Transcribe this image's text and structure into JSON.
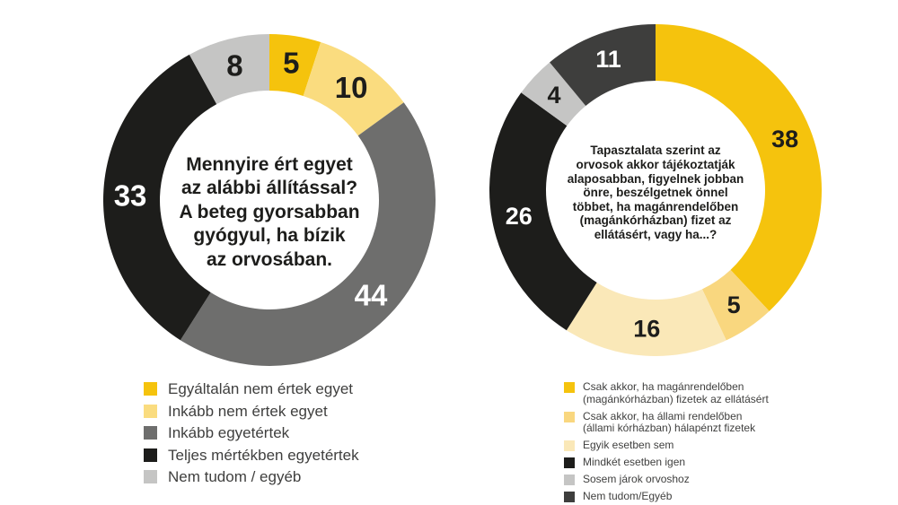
{
  "background": "#ffffff",
  "text_color": "#1d1d1b",
  "legend_text_color": "#3f3f3e",
  "chart_data": [
    {
      "type": "pie",
      "subtype": "donut",
      "unit": "percent",
      "total": 100,
      "start_angle_deg": 0,
      "direction": "clockwise",
      "legend_position": "below",
      "center_question": "Mennyire ért egyet\naz alábbi állítással?\nA beteg gyorsabban\ngyógyul, ha bízik\naz orvosában.",
      "segments": [
        {
          "label": "Egyáltalán nem értek egyet",
          "value": 5,
          "color": "#f5c30d",
          "value_label_color": "#1d1d1b"
        },
        {
          "label": "Inkább nem értek egyet",
          "value": 10,
          "color": "#fadc7f",
          "value_label_color": "#1d1d1b"
        },
        {
          "label": "Inkább egyetértek",
          "value": 44,
          "color": "#6e6e6d",
          "value_label_color": "#ffffff"
        },
        {
          "label": "Teljes mértékben egyetértek",
          "value": 33,
          "color": "#1d1d1b",
          "value_label_color": "#ffffff"
        },
        {
          "label": "Nem tudom / egyéb",
          "value": 8,
          "color": "#c5c5c4",
          "value_label_color": "#1d1d1b"
        }
      ]
    },
    {
      "type": "pie",
      "subtype": "donut",
      "unit": "percent",
      "total": 100,
      "start_angle_deg": 0,
      "direction": "clockwise",
      "legend_position": "below",
      "center_question": "Tapasztalata szerint az\norvosok akkor tájékoztatják\nalaposabban, figyelnek jobban\nönre, beszélgetnek önnel\ntöbbet, ha magánrendelőben\n(magánkórházban) fizet az\nellátásért, vagy ha...?",
      "segments": [
        {
          "label": "Csak akkor, ha magánrendelőben\n(magánkórházban) fizetek az ellátásért",
          "value": 38,
          "color": "#f5c30d",
          "value_label_color": "#1d1d1b"
        },
        {
          "label": "Csak akkor, ha állami rendelőben\n(állami kórházban) hálapénzt fizetek",
          "value": 5,
          "color": "#f9d77f",
          "value_label_color": "#1d1d1b"
        },
        {
          "label": "Egyik esetben sem",
          "value": 16,
          "color": "#fae8b8",
          "value_label_color": "#1d1d1b"
        },
        {
          "label": "Mindkét esetben igen",
          "value": 26,
          "color": "#1d1d1b",
          "value_label_color": "#ffffff"
        },
        {
          "label": "Sosem járok orvoshoz",
          "value": 4,
          "color": "#c5c5c4",
          "value_label_color": "#1d1d1b"
        },
        {
          "label": "Nem tudom/Egyéb",
          "value": 11,
          "color": "#3e3e3d",
          "value_label_color": "#ffffff"
        }
      ]
    }
  ]
}
